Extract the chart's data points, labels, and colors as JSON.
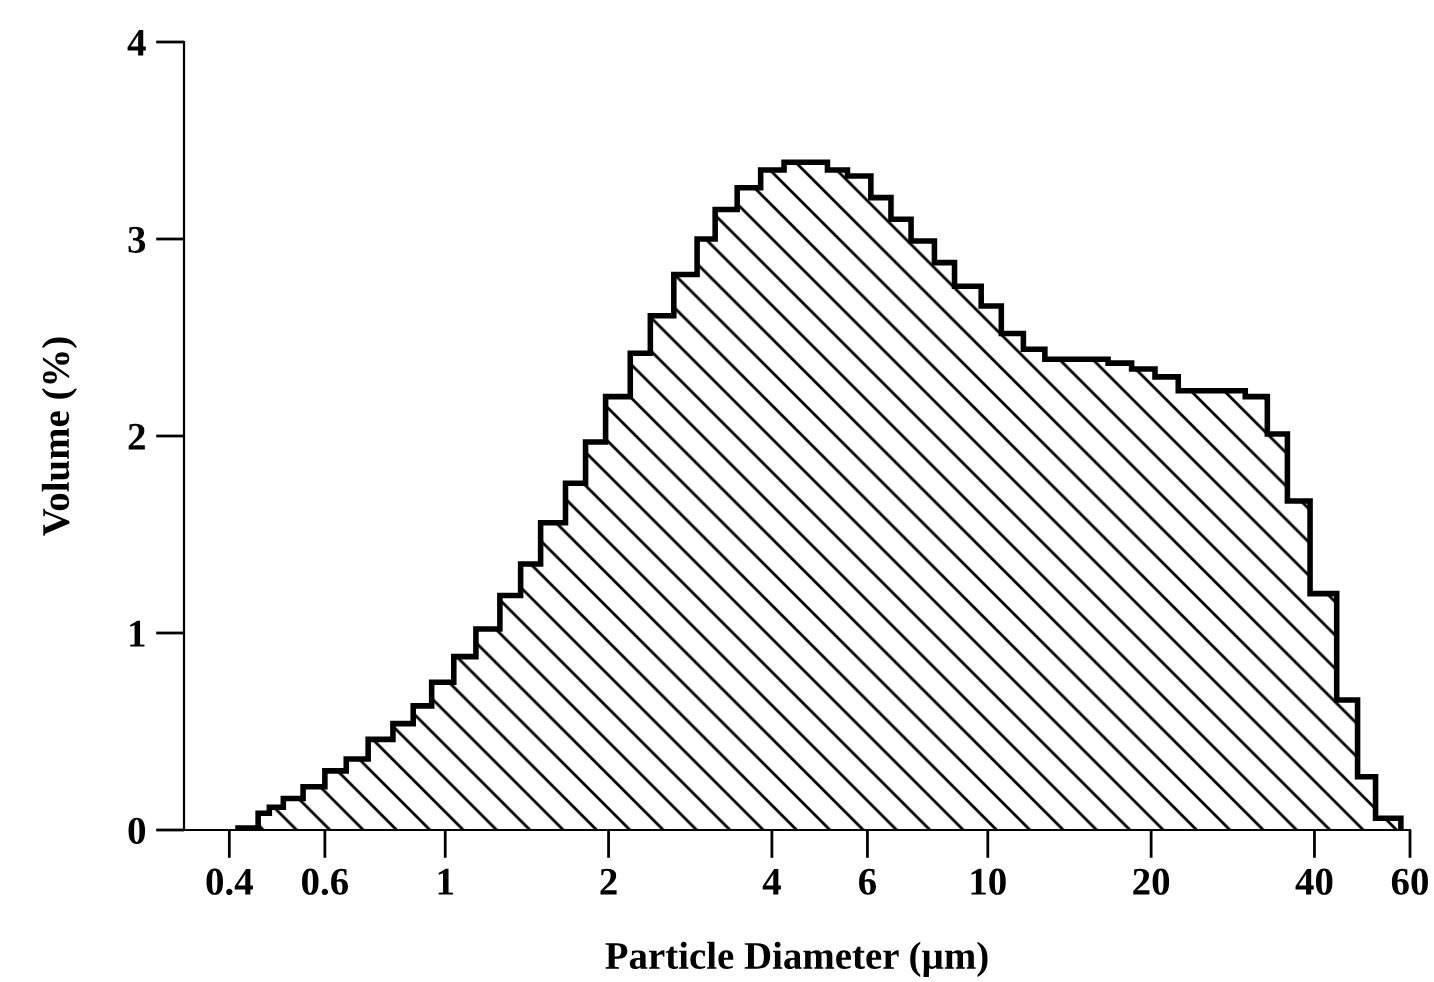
{
  "chart_data": {
    "type": "histogram",
    "xlabel": "Particle Diameter (µm)",
    "ylabel": "Volume (%)",
    "log": "x",
    "color": "#000000",
    "bins": [
      0.415,
      0.452,
      0.474,
      0.503,
      0.547,
      0.6,
      0.657,
      0.721,
      0.801,
      0.873,
      0.944,
      1.037,
      1.139,
      1.261,
      1.377,
      1.499,
      1.666,
      1.814,
      1.975,
      2.193,
      2.388,
      2.638,
      2.912,
      3.144,
      3.452,
      3.814,
      4.212,
      4.618,
      5.064,
      5.512,
      6.088,
      6.63,
      7.22,
      7.973,
      8.683,
      9.723,
      10.59,
      11.63,
      12.74,
      13.93,
      15.24,
      16.66,
      18.41,
      20.33,
      22.44,
      24.67,
      27.13,
      29.82,
      32.75,
      35.66,
      39.26,
      43.96,
      48.03,
      51.84,
      57.72
    ],
    "values": [
      0.01,
      0.085,
      0.115,
      0.16,
      0.22,
      0.3,
      0.36,
      0.46,
      0.54,
      0.63,
      0.75,
      0.88,
      1.02,
      1.19,
      1.35,
      1.56,
      1.76,
      1.97,
      2.2,
      2.42,
      2.61,
      2.82,
      3.0,
      3.15,
      3.26,
      3.35,
      3.39,
      3.39,
      3.35,
      3.32,
      3.21,
      3.1,
      2.99,
      2.88,
      2.76,
      2.66,
      2.52,
      2.44,
      2.39,
      2.39,
      2.39,
      2.37,
      2.34,
      2.3,
      2.23,
      2.23,
      2.23,
      2.2,
      2.01,
      1.67,
      1.2,
      0.66,
      0.27,
      0.06
    ],
    "xlim": [
      0.33,
      60
    ],
    "ylim": [
      0,
      4
    ],
    "xticks": [
      0.4,
      0.6,
      1,
      2,
      4,
      6,
      10,
      20,
      40,
      60
    ],
    "yticks": [
      0,
      1,
      2,
      3,
      4
    ]
  }
}
